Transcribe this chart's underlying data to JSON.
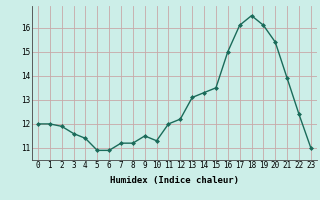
{
  "x": [
    0,
    1,
    2,
    3,
    4,
    5,
    6,
    7,
    8,
    9,
    10,
    11,
    12,
    13,
    14,
    15,
    16,
    17,
    18,
    19,
    20,
    21,
    22,
    23
  ],
  "y": [
    12.0,
    12.0,
    11.9,
    11.6,
    11.4,
    10.9,
    10.9,
    11.2,
    11.2,
    11.5,
    11.3,
    12.0,
    12.2,
    13.1,
    13.3,
    13.5,
    15.0,
    16.1,
    16.5,
    16.1,
    15.4,
    13.9,
    12.4,
    11.0
  ],
  "line_color": "#1a6b5a",
  "marker": "D",
  "marker_size": 2.0,
  "line_width": 1.0,
  "bg_color": "#cceee8",
  "grid_color": "#c8a8a8",
  "xlabel": "Humidex (Indice chaleur)",
  "xlabel_fontsize": 6.5,
  "tick_fontsize": 5.5,
  "ylim": [
    10.5,
    16.9
  ],
  "yticks": [
    11,
    12,
    13,
    14,
    15,
    16
  ],
  "xticks": [
    0,
    1,
    2,
    3,
    4,
    5,
    6,
    7,
    8,
    9,
    10,
    11,
    12,
    13,
    14,
    15,
    16,
    17,
    18,
    19,
    20,
    21,
    22,
    23
  ]
}
